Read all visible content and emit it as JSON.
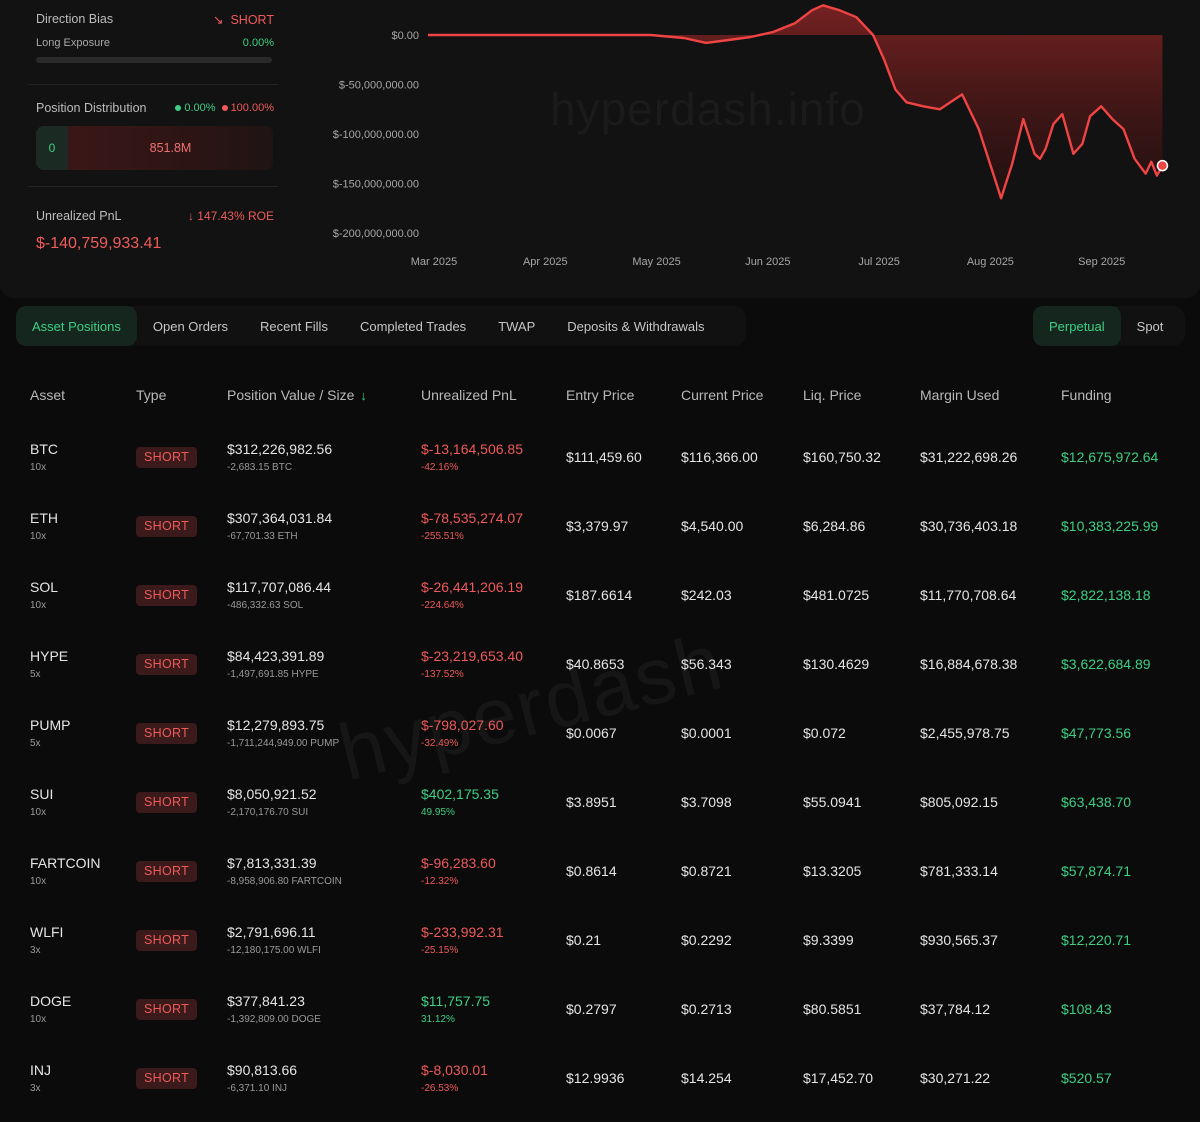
{
  "summary": {
    "direction_bias_label": "Direction Bias",
    "direction_bias_value": "SHORT",
    "long_exposure_label": "Long Exposure",
    "long_exposure_value": "0.00%",
    "long_exposure_fraction": 0.0,
    "position_distribution_label": "Position Distribution",
    "dist_long_pct": "0.00%",
    "dist_short_pct": "100.00%",
    "dist_long_value": "0",
    "dist_short_value": "851.8M",
    "unrealized_pnl_label": "Unrealized PnL",
    "roe": "147.43% ROE",
    "unrealized_pnl_value": "$-140,759,933.41"
  },
  "chart_data": {
    "type": "area",
    "watermark": "hyperdash.info",
    "y_ticks": [
      "$0.00",
      "$-50,000,000.00",
      "$-100,000,000.00",
      "$-150,000,000.00",
      "$-200,000,000.00"
    ],
    "x_ticks": [
      "Mar 2025",
      "Apr 2025",
      "May 2025",
      "Jun 2025",
      "Jul 2025",
      "Aug 2025",
      "Sep 2025"
    ],
    "ylim": [
      -200000000,
      0
    ],
    "x_range": [
      0,
      6.65
    ],
    "series": [
      {
        "x": [
          0,
          0.5,
          1.0,
          1.5,
          2.0,
          2.3,
          2.5,
          2.7,
          2.9,
          3.1,
          3.3,
          3.45,
          3.55,
          3.7,
          3.85,
          4.0,
          4.1,
          4.2,
          4.3,
          4.45,
          4.6,
          4.8,
          4.95,
          5.05,
          5.15,
          5.25,
          5.35,
          5.45,
          5.5,
          5.55,
          5.62,
          5.7,
          5.8,
          5.88,
          5.95,
          6.05,
          6.15,
          6.25,
          6.35,
          6.45,
          6.5,
          6.55,
          6.6
        ],
        "y": [
          0,
          0,
          0,
          0,
          0,
          -3000000,
          -8000000,
          -5000000,
          -2000000,
          3000000,
          12000000,
          25000000,
          30000000,
          25000000,
          18000000,
          0,
          -25000000,
          -55000000,
          -68000000,
          -72000000,
          -75000000,
          -60000000,
          -95000000,
          -130000000,
          -165000000,
          -130000000,
          -85000000,
          -120000000,
          -125000000,
          -115000000,
          -90000000,
          -80000000,
          -120000000,
          -110000000,
          -82000000,
          -72000000,
          -85000000,
          -95000000,
          -125000000,
          -140000000,
          -128000000,
          -142000000,
          -132000000
        ]
      }
    ],
    "line_color": "#ef4444"
  },
  "tabs": [
    "Asset Positions",
    "Open Orders",
    "Recent Fills",
    "Completed Trades",
    "TWAP",
    "Deposits & Withdrawals"
  ],
  "market_tabs": [
    "Perpetual",
    "Spot"
  ],
  "table": {
    "headers": {
      "asset": "Asset",
      "type": "Type",
      "position": "Position Value / Size",
      "pnl": "Unrealized PnL",
      "entry": "Entry Price",
      "current": "Current Price",
      "liq": "Liq. Price",
      "margin": "Margin Used",
      "funding": "Funding"
    },
    "rows": [
      {
        "asset": "BTC",
        "leverage": "10x",
        "type": "SHORT",
        "value": "$312,226,982.56",
        "size": "-2,683.15 BTC",
        "pnl": "$-13,164,506.85",
        "pnl_pct": "-42.16%",
        "pnl_positive": false,
        "entry": "$111,459.60",
        "current": "$116,366.00",
        "liq": "$160,750.32",
        "margin": "$31,222,698.26",
        "funding": "$12,675,972.64"
      },
      {
        "asset": "ETH",
        "leverage": "10x",
        "type": "SHORT",
        "value": "$307,364,031.84",
        "size": "-67,701.33 ETH",
        "pnl": "$-78,535,274.07",
        "pnl_pct": "-255.51%",
        "pnl_positive": false,
        "entry": "$3,379.97",
        "current": "$4,540.00",
        "liq": "$6,284.86",
        "margin": "$30,736,403.18",
        "funding": "$10,383,225.99"
      },
      {
        "asset": "SOL",
        "leverage": "10x",
        "type": "SHORT",
        "value": "$117,707,086.44",
        "size": "-486,332.63 SOL",
        "pnl": "$-26,441,206.19",
        "pnl_pct": "-224.64%",
        "pnl_positive": false,
        "entry": "$187.6614",
        "current": "$242.03",
        "liq": "$481.0725",
        "margin": "$11,770,708.64",
        "funding": "$2,822,138.18"
      },
      {
        "asset": "HYPE",
        "leverage": "5x",
        "type": "SHORT",
        "value": "$84,423,391.89",
        "size": "-1,497,691.85 HYPE",
        "pnl": "$-23,219,653.40",
        "pnl_pct": "-137.52%",
        "pnl_positive": false,
        "entry": "$40.8653",
        "current": "$56.343",
        "liq": "$130.4629",
        "margin": "$16,884,678.38",
        "funding": "$3,622,684.89"
      },
      {
        "asset": "PUMP",
        "leverage": "5x",
        "type": "SHORT",
        "value": "$12,279,893.75",
        "size": "-1,711,244,949.00 PUMP",
        "pnl": "$-798,027.60",
        "pnl_pct": "-32.49%",
        "pnl_positive": false,
        "entry": "$0.0067",
        "current": "$0.0001",
        "liq": "$0.072",
        "margin": "$2,455,978.75",
        "funding": "$47,773.56"
      },
      {
        "asset": "SUI",
        "leverage": "10x",
        "type": "SHORT",
        "value": "$8,050,921.52",
        "size": "-2,170,176.70 SUI",
        "pnl": "$402,175.35",
        "pnl_pct": "49.95%",
        "pnl_positive": true,
        "entry": "$3.8951",
        "current": "$3.7098",
        "liq": "$55.0941",
        "margin": "$805,092.15",
        "funding": "$63,438.70"
      },
      {
        "asset": "FARTCOIN",
        "leverage": "10x",
        "type": "SHORT",
        "value": "$7,813,331.39",
        "size": "-8,958,906.80 FARTCOIN",
        "pnl": "$-96,283.60",
        "pnl_pct": "-12.32%",
        "pnl_positive": false,
        "entry": "$0.8614",
        "current": "$0.8721",
        "liq": "$13.3205",
        "margin": "$781,333.14",
        "funding": "$57,874.71"
      },
      {
        "asset": "WLFI",
        "leverage": "3x",
        "type": "SHORT",
        "value": "$2,791,696.11",
        "size": "-12,180,175.00 WLFI",
        "pnl": "$-233,992.31",
        "pnl_pct": "-25.15%",
        "pnl_positive": false,
        "entry": "$0.21",
        "current": "$0.2292",
        "liq": "$9.3399",
        "margin": "$930,565.37",
        "funding": "$12,220.71"
      },
      {
        "asset": "DOGE",
        "leverage": "10x",
        "type": "SHORT",
        "value": "$377,841.23",
        "size": "-1,392,809.00 DOGE",
        "pnl": "$11,757.75",
        "pnl_pct": "31.12%",
        "pnl_positive": true,
        "entry": "$0.2797",
        "current": "$0.2713",
        "liq": "$80.5851",
        "margin": "$37,784.12",
        "funding": "$108.43"
      },
      {
        "asset": "INJ",
        "leverage": "3x",
        "type": "SHORT",
        "value": "$90,813.66",
        "size": "-6,371.10 INJ",
        "pnl": "$-8,030.01",
        "pnl_pct": "-26.53%",
        "pnl_positive": false,
        "entry": "$12.9936",
        "current": "$14.254",
        "liq": "$17,452.70",
        "margin": "$30,271.22",
        "funding": "$520.57"
      }
    ]
  },
  "table_watermark": "hyperdash"
}
